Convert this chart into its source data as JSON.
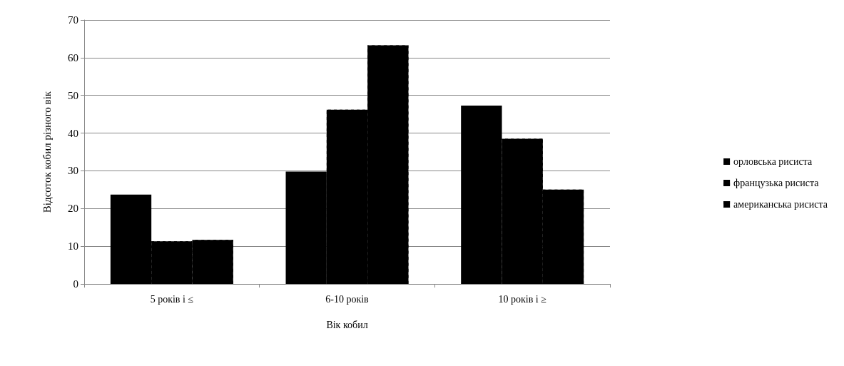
{
  "chart_data": {
    "type": "bar",
    "categories": [
      "5 років і ≤",
      "6-10 років",
      "10 років і ≥"
    ],
    "series": [
      {
        "name": "орловська рисиста",
        "color": "#000000",
        "values": [
          23.7,
          29.8,
          47.3
        ]
      },
      {
        "name": "французька рисиста",
        "color": "#000000",
        "values": [
          11.3,
          46.2,
          38.5
        ]
      },
      {
        "name": "американська рисиста",
        "color": "#000000",
        "values": [
          11.7,
          63.3,
          25
        ]
      }
    ],
    "xlabel": "Вік кобил",
    "ylabel": "Відсоток кобил різного вік",
    "ylim": [
      0,
      70
    ],
    "yticks": [
      0,
      10,
      20,
      30,
      40,
      50,
      60,
      70
    ],
    "grid": "y",
    "legend": "right"
  }
}
